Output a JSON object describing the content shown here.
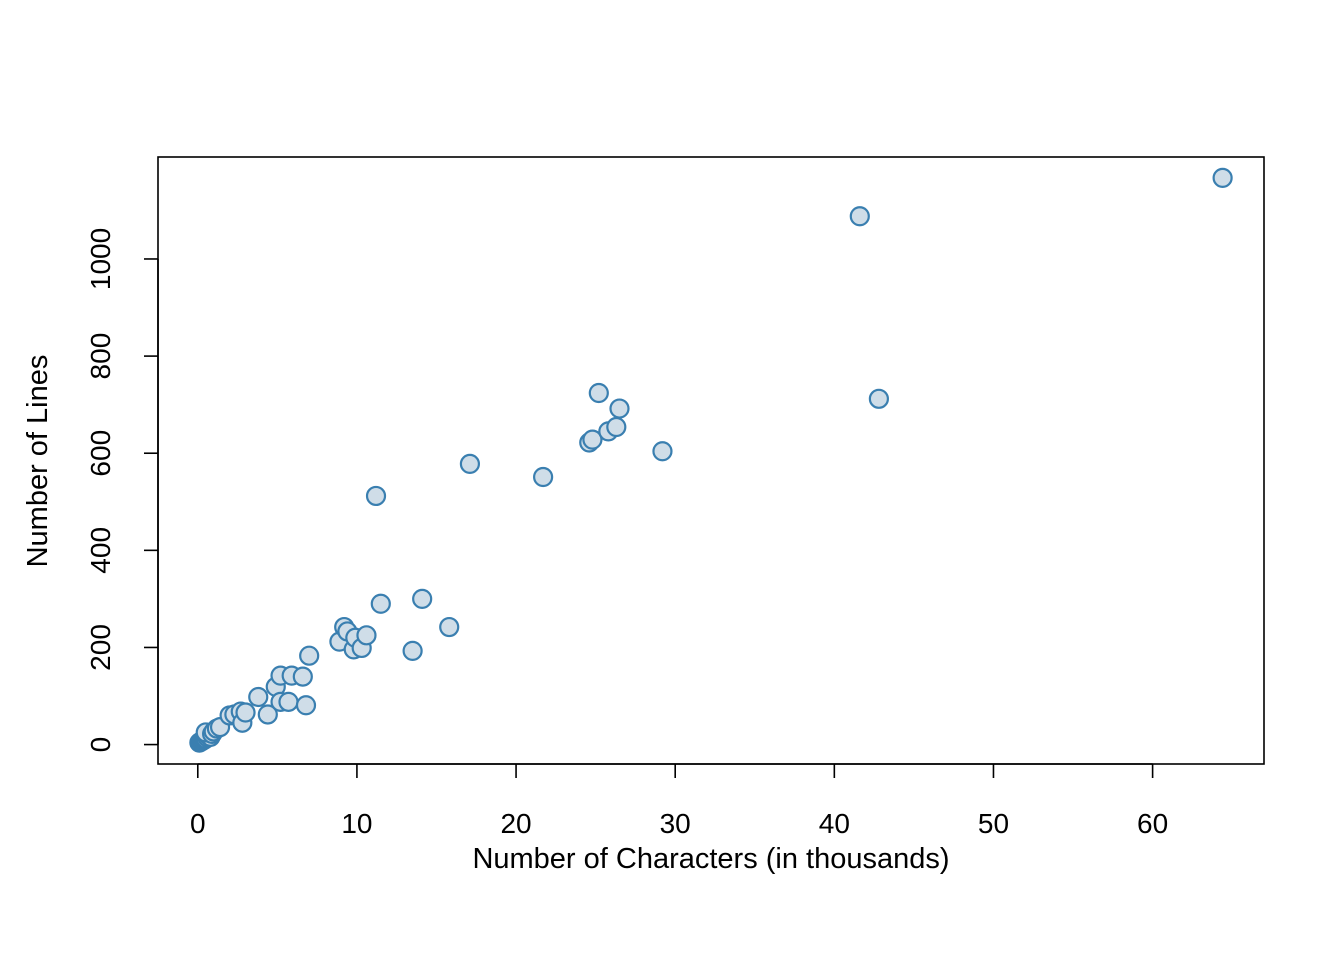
{
  "chart_data": {
    "type": "scatter",
    "title": "",
    "xlabel": "Number of Characters (in thousands)",
    "ylabel": "Number of Lines",
    "xlim": [
      -2.5,
      67
    ],
    "ylim": [
      -40,
      1210
    ],
    "x_ticks": [
      0,
      10,
      20,
      30,
      40,
      50,
      60
    ],
    "y_ticks": [
      0,
      200,
      400,
      600,
      800,
      1000
    ],
    "grid": false,
    "marker_fill": "#cfdde8",
    "marker_edge": "#3a7fb0",
    "points": [
      {
        "x": 0.1,
        "y": 4
      },
      {
        "x": 0.2,
        "y": 6
      },
      {
        "x": 0.3,
        "y": 8
      },
      {
        "x": 0.4,
        "y": 10
      },
      {
        "x": 0.5,
        "y": 12
      },
      {
        "x": 0.6,
        "y": 15
      },
      {
        "x": 0.7,
        "y": 18
      },
      {
        "x": 0.8,
        "y": 16
      },
      {
        "x": 0.5,
        "y": 25
      },
      {
        "x": 0.9,
        "y": 22
      },
      {
        "x": 1.0,
        "y": 27
      },
      {
        "x": 1.2,
        "y": 33
      },
      {
        "x": 1.4,
        "y": 36
      },
      {
        "x": 2.0,
        "y": 60
      },
      {
        "x": 2.3,
        "y": 62
      },
      {
        "x": 2.7,
        "y": 68
      },
      {
        "x": 2.8,
        "y": 45
      },
      {
        "x": 3.0,
        "y": 66
      },
      {
        "x": 3.8,
        "y": 98
      },
      {
        "x": 4.4,
        "y": 62
      },
      {
        "x": 4.9,
        "y": 119
      },
      {
        "x": 5.2,
        "y": 142
      },
      {
        "x": 5.2,
        "y": 88
      },
      {
        "x": 5.7,
        "y": 88
      },
      {
        "x": 5.9,
        "y": 142
      },
      {
        "x": 6.6,
        "y": 140
      },
      {
        "x": 6.8,
        "y": 81
      },
      {
        "x": 7.0,
        "y": 183
      },
      {
        "x": 8.9,
        "y": 212
      },
      {
        "x": 9.2,
        "y": 242
      },
      {
        "x": 9.4,
        "y": 233
      },
      {
        "x": 9.8,
        "y": 196
      },
      {
        "x": 9.9,
        "y": 220
      },
      {
        "x": 10.3,
        "y": 199
      },
      {
        "x": 10.6,
        "y": 225
      },
      {
        "x": 11.2,
        "y": 512
      },
      {
        "x": 11.5,
        "y": 290
      },
      {
        "x": 13.5,
        "y": 193
      },
      {
        "x": 14.1,
        "y": 300
      },
      {
        "x": 15.8,
        "y": 242
      },
      {
        "x": 17.1,
        "y": 578
      },
      {
        "x": 21.7,
        "y": 551
      },
      {
        "x": 24.6,
        "y": 622
      },
      {
        "x": 24.8,
        "y": 628
      },
      {
        "x": 25.2,
        "y": 724
      },
      {
        "x": 25.8,
        "y": 645
      },
      {
        "x": 26.3,
        "y": 654
      },
      {
        "x": 26.5,
        "y": 692
      },
      {
        "x": 29.2,
        "y": 604
      },
      {
        "x": 41.6,
        "y": 1088
      },
      {
        "x": 42.8,
        "y": 712
      },
      {
        "x": 64.4,
        "y": 1167
      }
    ]
  }
}
